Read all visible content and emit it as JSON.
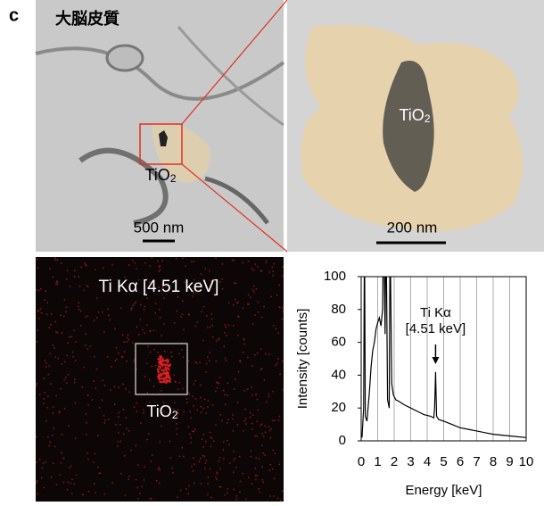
{
  "panel_label": "c",
  "region_label": "大脳皮質",
  "micrograph_low": {
    "particle": {
      "text": "TiO",
      "sub": "2"
    },
    "scale_bar": "500 nm"
  },
  "micrograph_high": {
    "particle": {
      "text": "TiO",
      "sub": "2"
    },
    "scale_bar": "200 nm"
  },
  "eds_map": {
    "title": "Ti Kα [4.51 keV]",
    "particle": {
      "text": "TiO",
      "sub": "2"
    }
  },
  "chart_data": {
    "type": "line",
    "xlabel": "Energy [keV]",
    "ylabel": "Intensity [counts]",
    "annotation": [
      "Ti Kα",
      "[4.51 keV]"
    ],
    "annotation_x": 4.51,
    "x": [
      0.05,
      0.15,
      0.2,
      0.25,
      0.35,
      0.5,
      0.6,
      0.7,
      0.8,
      0.9,
      1.0,
      1.1,
      1.2,
      1.3,
      1.35,
      1.45,
      1.5,
      1.6,
      1.7,
      1.75,
      1.85,
      1.95,
      2.1,
      2.3,
      2.6,
      3.0,
      3.4,
      3.8,
      4.2,
      4.4,
      4.45,
      4.51,
      4.57,
      4.7,
      5.0,
      5.5,
      6.0,
      6.5,
      7.0,
      7.5,
      8.0,
      9.0,
      10.0
    ],
    "series": [
      {
        "color": "#000000",
        "values": [
          2,
          20,
          130,
          15,
          12,
          30,
          45,
          55,
          60,
          68,
          72,
          75,
          70,
          80,
          140,
          65,
          140,
          25,
          20,
          130,
          35,
          28,
          25,
          24,
          22,
          20,
          18,
          16,
          15,
          14,
          20,
          42,
          15,
          13,
          12,
          10,
          8,
          7,
          6,
          5,
          4,
          3,
          2
        ]
      }
    ],
    "xlim": [
      0,
      10
    ],
    "ylim": [
      0,
      100
    ],
    "xticks": [
      0,
      1,
      2,
      3,
      4,
      5,
      6,
      7,
      8,
      9,
      10
    ],
    "yticks": [
      0,
      20,
      40,
      60,
      80,
      100
    ],
    "grid": true
  }
}
